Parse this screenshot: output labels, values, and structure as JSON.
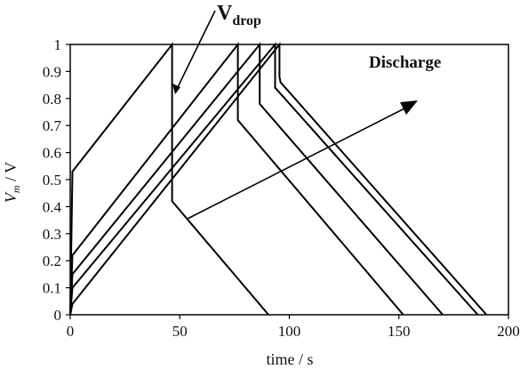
{
  "chart_data": {
    "type": "line",
    "xlabel": "time / s",
    "ylabel_main": "V",
    "ylabel_sub": "m",
    "ylabel_unit": " / V",
    "xlim": [
      0,
      200
    ],
    "ylim": [
      0,
      1
    ],
    "xticks": [
      0,
      50,
      100,
      150,
      200
    ],
    "yticks": [
      0,
      0.1,
      0.2,
      0.3,
      0.4,
      0.5,
      0.6,
      0.7,
      0.8,
      0.9,
      1
    ],
    "grid": false,
    "annotations": {
      "vdrop_main": "V",
      "vdrop_sub": "drop",
      "discharge": "Discharge"
    },
    "series": [
      {
        "points": [
          [
            0,
            0
          ],
          [
            1,
            0.53
          ],
          [
            46.5,
            1
          ],
          [
            46.5,
            0.85
          ],
          [
            46.5,
            0.42
          ],
          [
            90.5,
            0
          ]
        ]
      },
      {
        "points": [
          [
            0,
            0
          ],
          [
            1,
            0.22
          ],
          [
            76.5,
            1
          ],
          [
            76.5,
            0.84
          ],
          [
            76.5,
            0.72
          ],
          [
            152,
            0
          ]
        ]
      },
      {
        "points": [
          [
            0,
            0
          ],
          [
            1,
            0.15
          ],
          [
            86.5,
            1
          ],
          [
            86.5,
            0.85
          ],
          [
            86.5,
            0.78
          ],
          [
            170,
            0
          ]
        ]
      },
      {
        "points": [
          [
            0,
            0
          ],
          [
            1,
            0.1
          ],
          [
            93.5,
            1
          ],
          [
            93.5,
            0.88
          ],
          [
            93.5,
            0.84
          ],
          [
            186,
            0
          ]
        ]
      },
      {
        "points": [
          [
            0,
            0
          ],
          [
            1,
            0.04
          ],
          [
            95.5,
            1
          ],
          [
            95.5,
            0.88
          ],
          [
            96,
            0.86
          ],
          [
            190,
            0
          ]
        ]
      }
    ]
  }
}
